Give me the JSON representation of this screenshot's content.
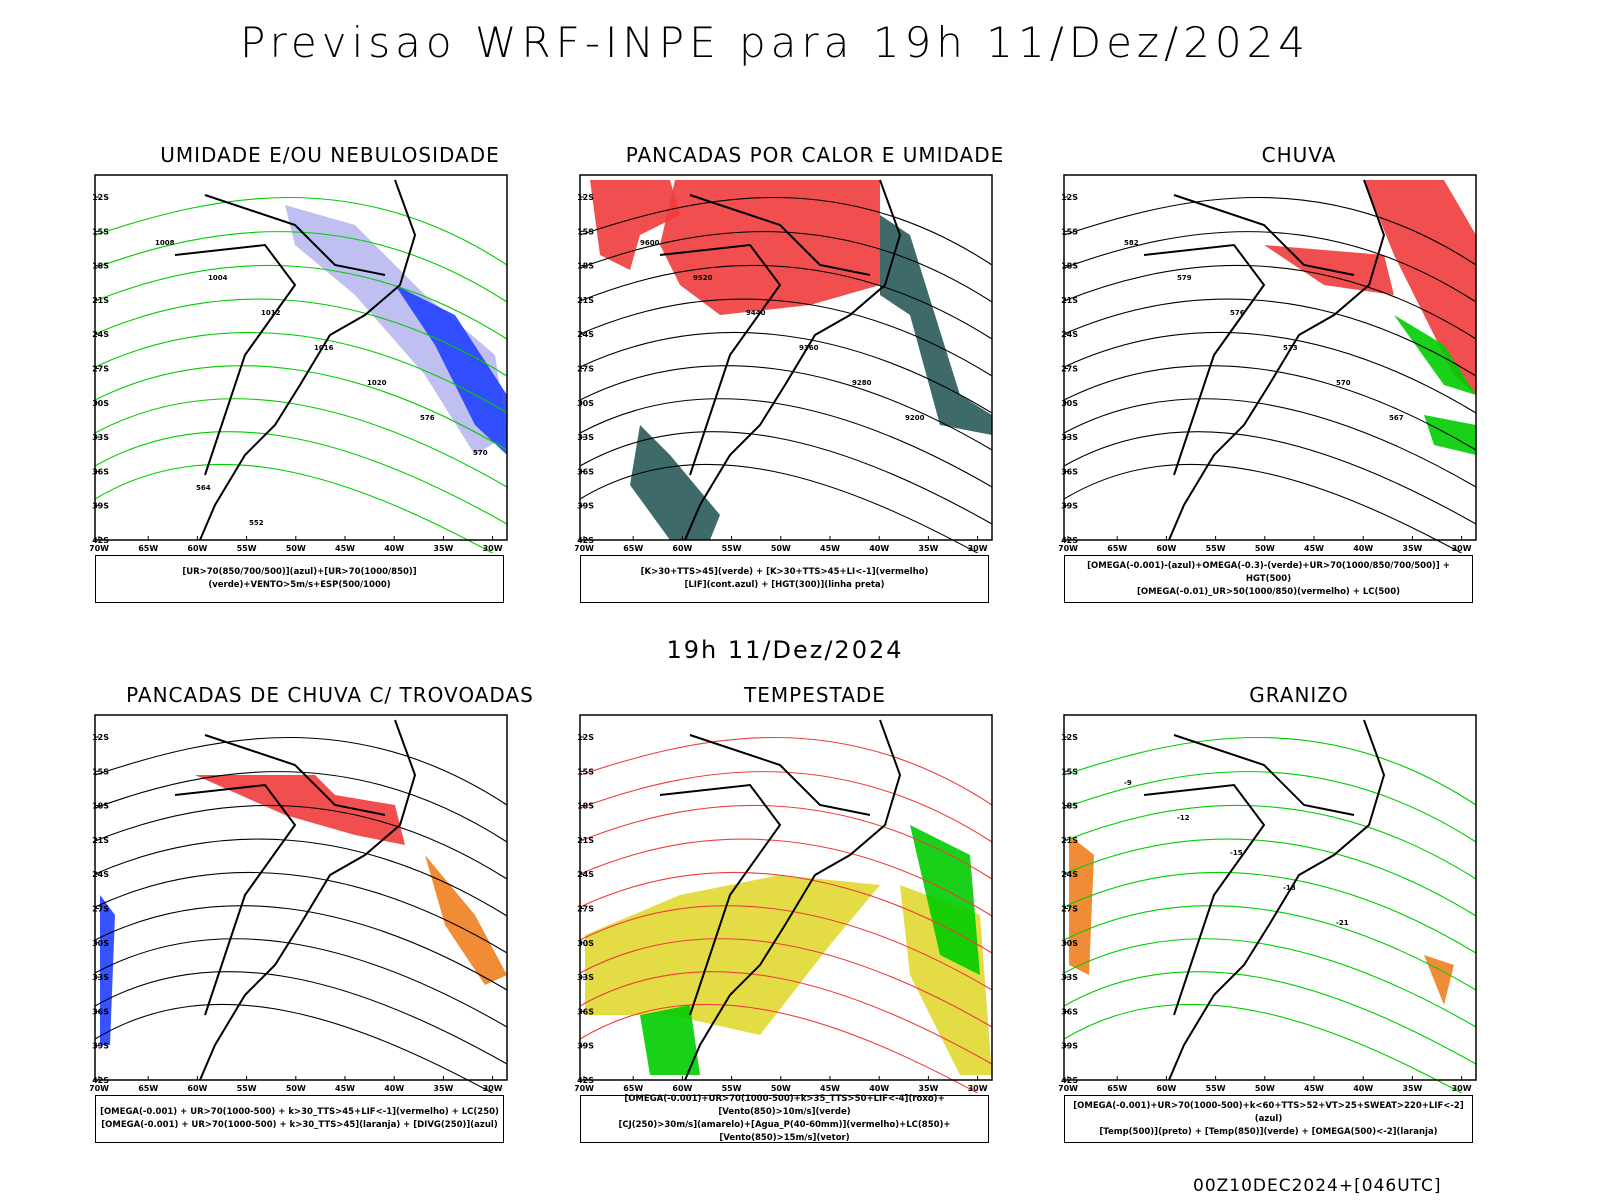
{
  "title": "Previsao WRF-INPE  para 19h 11/Dez/2024",
  "mid_caption": "19h 11/Dez/2024",
  "footer": "00Z10DEC2024+[046UTC]",
  "axes": {
    "lat_labels": [
      "12S",
      "15S",
      "18S",
      "21S",
      "24S",
      "27S",
      "30S",
      "33S",
      "36S",
      "39S",
      "42S"
    ],
    "lon_labels": [
      "70W",
      "65W",
      "60W",
      "55W",
      "50W",
      "45W",
      "40W",
      "35W",
      "30W"
    ]
  },
  "colors": {
    "red": "#f03c3c",
    "green": "#00cc00",
    "blue": "#2040ff",
    "lightblue": "#b8b8f0",
    "orange": "#f08020",
    "yellow": "#e0d830",
    "teal": "#2a5a5a",
    "purple": "#a000c0"
  },
  "panels": [
    {
      "title": "UMIDADE E/OU NEBULOSIDADE",
      "legend": [
        "[UR>70(850/700/500)](azul)+[UR>70(1000/850)](verde)+VENTO>5m/s+ESP(500/1000)"
      ],
      "labels": [
        "1008",
        "1004",
        "1012",
        "1016",
        "1020",
        "576",
        "570",
        "564",
        "552"
      ]
    },
    {
      "title": "PANCADAS POR CALOR E UMIDADE",
      "legend": [
        "[K>30+TTS>45](verde) + [K>30+TTS>45+LI<-1](vermelho)",
        "[LIF](cont.azul) + [HGT(300)](linha preta)"
      ],
      "labels": [
        "9600",
        "9520",
        "9440",
        "9360",
        "9280",
        "9200"
      ]
    },
    {
      "title": "CHUVA",
      "legend": [
        "[OMEGA(-0.001)-(azul)+OMEGA(-0.3)-(verde)+UR>70(1000/850/700/500)] + HGT(500)",
        "[OMEGA(-0.01)_UR>50(1000/850)(vermelho) + LC(500)"
      ],
      "labels": [
        "582",
        "579",
        "576",
        "573",
        "570",
        "567"
      ]
    },
    {
      "title": "PANCADAS DE CHUVA C/ TROVOADAS",
      "legend": [
        "[OMEGA(-0.001) + UR>70(1000-500) + k>30_TTS>45+LIF<-1](vermelho) + LC(250)",
        "[OMEGA(-0.001) + UR>70(1000-500) + k>30_TTS>45](laranja) + [DIVG(250)](azul)"
      ],
      "labels": []
    },
    {
      "title": "TEMPESTADE",
      "legend": [
        "[OMEGA(-0.001)+UR>70(1000-500)+k>35_TTS>50+LIF<-4](roxo)+[Vento(850)>10m/s](verde)",
        "[CJ(250)>30m/s](amarelo)+[Agua_P(40-60mm)](vermelho)+LC(850)+[Vento(850)>15m/s](vetor)"
      ],
      "labels": []
    },
    {
      "title": "GRANIZO",
      "legend": [
        "[OMEGA(-0.001)+UR>70(1000-500)+k<60+TTS>52+VT>25+SWEAT>220+LIF<-2](azul)",
        "[Temp(500)](preto) + [Temp(850)](verde) + [OMEGA(500)<-2](laranja)"
      ],
      "labels": [
        "-9",
        "-12",
        "-15",
        "-18",
        "-21"
      ]
    }
  ]
}
